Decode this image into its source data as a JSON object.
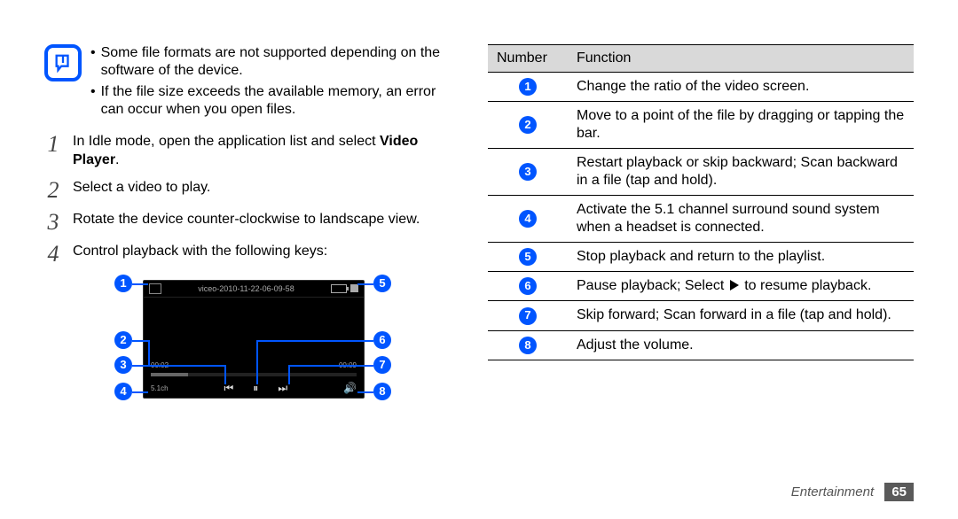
{
  "notes": {
    "bullet1": "Some file formats are not supported depending on the software of the device.",
    "bullet2": "If the file size exceeds the available memory, an error can occur when you open files."
  },
  "steps": {
    "s1_pre": "In Idle mode, open the application list and select ",
    "s1_bold": "Video Player",
    "s1_post": ".",
    "s2": "Select a video to play.",
    "s3": "Rotate the device counter-clockwise to landscape view.",
    "s4": "Control playback with the following keys:"
  },
  "player": {
    "title": "viceo-2010-11-22-06-09-58",
    "time_left": "00:02",
    "time_right": "00:09",
    "fiveone": "5.1ch"
  },
  "table": {
    "h1": "Number",
    "h2": "Function",
    "rows": [
      {
        "n": "1",
        "f": "Change the ratio of the video screen."
      },
      {
        "n": "2",
        "f": "Move to a point of the file by dragging or tapping the bar."
      },
      {
        "n": "3",
        "f": "Restart playback or skip backward; Scan backward in a file (tap and hold)."
      },
      {
        "n": "4",
        "f": "Activate the 5.1 channel surround sound system when a headset is connected."
      },
      {
        "n": "5",
        "f": "Stop playback and return to the playlist."
      },
      {
        "n": "6",
        "f_pre": "Pause playback; Select ",
        "f_post": " to resume playback.",
        "has_play": true
      },
      {
        "n": "7",
        "f": "Skip forward; Scan forward in a file (tap and hold)."
      },
      {
        "n": "8",
        "f": "Adjust the volume."
      }
    ]
  },
  "footer": {
    "section": "Entertainment",
    "page": "65"
  },
  "colors": {
    "accent": "#0055ff"
  }
}
